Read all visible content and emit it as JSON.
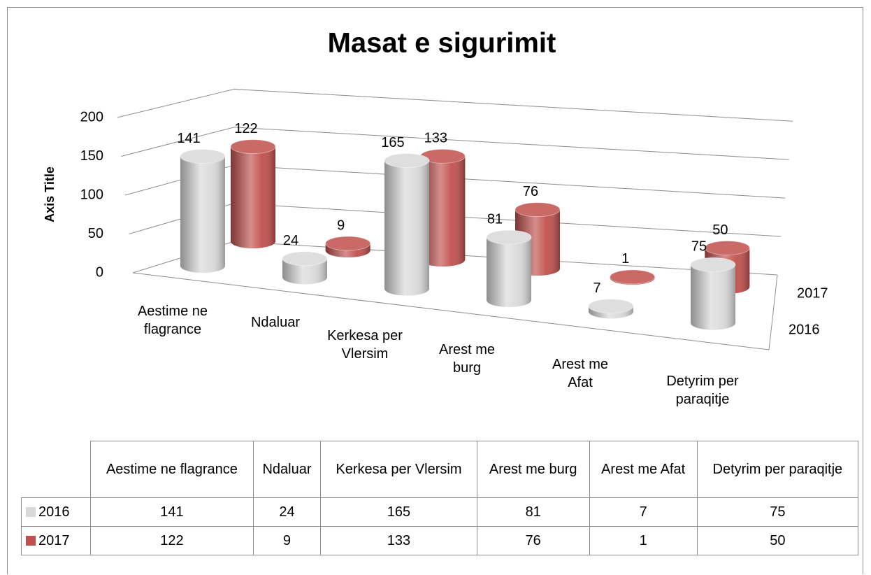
{
  "chart_data": {
    "type": "cylinder3d",
    "title": "Masat e sigurimit",
    "y_axis_title": "Axis Title",
    "categories": [
      "Aestime ne flagrance",
      "Ndaluar",
      "Kerkesa per Vlersim",
      "Arest me burg",
      "Arest me Afat",
      "Detyrim per paraqitje"
    ],
    "series": [
      {
        "name": "2016",
        "color": "#d9d9d9",
        "values": [
          141,
          24,
          165,
          81,
          7,
          75
        ]
      },
      {
        "name": "2017",
        "color": "#c0504d",
        "values": [
          122,
          9,
          133,
          76,
          1,
          50
        ]
      }
    ],
    "ylim": [
      0,
      200
    ],
    "yticks": [
      0,
      50,
      100,
      150,
      200
    ],
    "grid": true,
    "data_table": true
  }
}
